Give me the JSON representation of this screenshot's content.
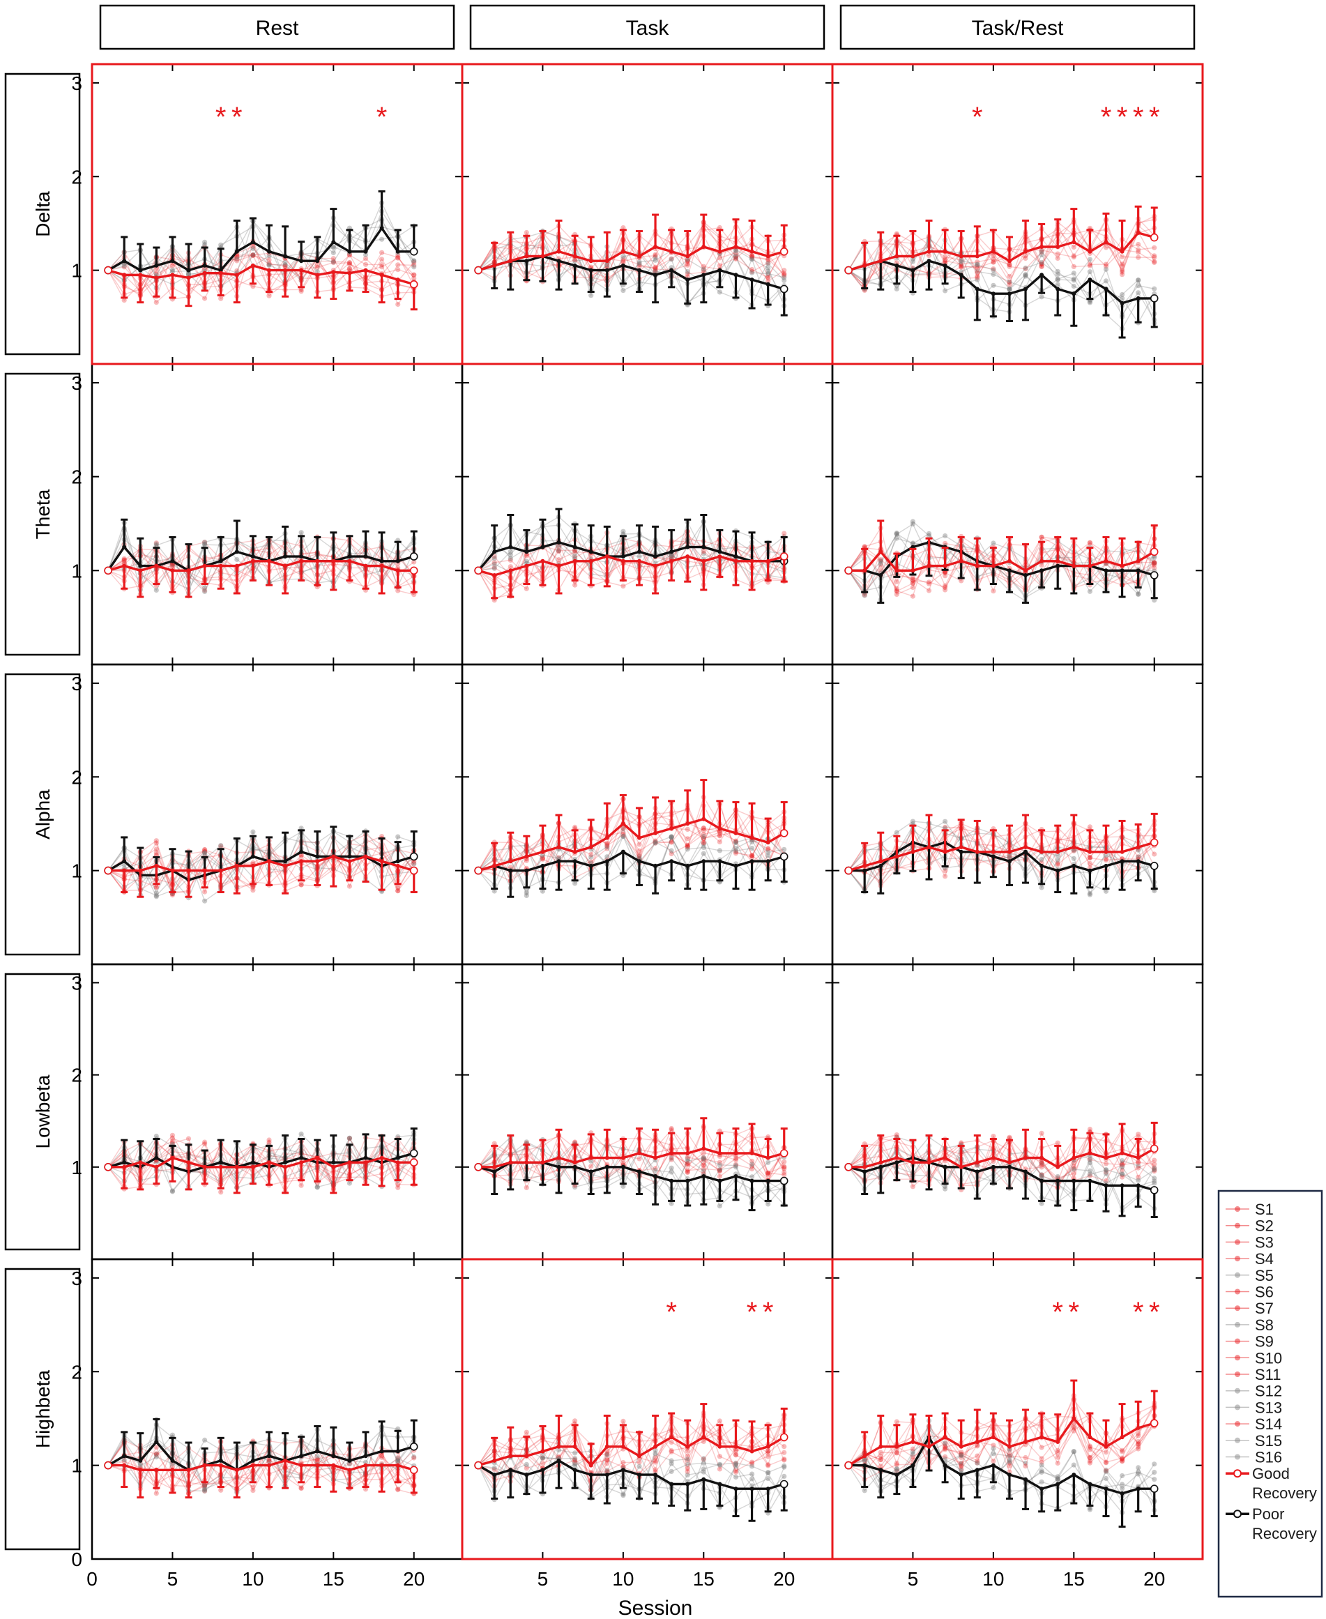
{
  "chart_data": {
    "type": "line",
    "columns": [
      "Rest",
      "Task",
      "Task/Rest"
    ],
    "rows": [
      "Delta",
      "Theta",
      "Alpha",
      "Lowbeta",
      "Highbeta"
    ],
    "xlabel": "Session",
    "xlim": [
      0,
      23
    ],
    "ylim": [
      0,
      3.2
    ],
    "xticks": [
      0,
      5,
      10,
      15,
      20
    ],
    "yticks": [
      0,
      1,
      2,
      3
    ],
    "x": [
      1,
      2,
      3,
      4,
      5,
      6,
      7,
      8,
      9,
      10,
      11,
      12,
      13,
      14,
      15,
      16,
      17,
      18,
      19,
      20
    ],
    "grid": false,
    "legend_position": "right-bottom",
    "colors": {
      "good": "#e8191d",
      "poor": "#111111",
      "highlight_border": "#e8191d"
    },
    "legend": [
      {
        "label": "S1",
        "group": "good",
        "marker": "circle"
      },
      {
        "label": "S2",
        "group": "good",
        "marker": "square"
      },
      {
        "label": "S3",
        "group": "good",
        "marker": "triangle-up"
      },
      {
        "label": "S4",
        "group": "good",
        "marker": "triangle-down"
      },
      {
        "label": "S5",
        "group": "poor",
        "marker": "diamond"
      },
      {
        "label": "S6",
        "group": "good",
        "marker": "triangle-left"
      },
      {
        "label": "S7",
        "group": "good",
        "marker": "triangle-right"
      },
      {
        "label": "S8",
        "group": "poor",
        "marker": "hexagon"
      },
      {
        "label": "S9",
        "group": "good",
        "marker": "circle"
      },
      {
        "label": "S10",
        "group": "good",
        "marker": "circle"
      },
      {
        "label": "S11",
        "group": "good",
        "marker": "circle"
      },
      {
        "label": "S12",
        "group": "poor",
        "marker": "plus"
      },
      {
        "label": "S13",
        "group": "poor",
        "marker": "cross"
      },
      {
        "label": "S14",
        "group": "good",
        "marker": "star"
      },
      {
        "label": "S15",
        "group": "poor",
        "marker": "dot"
      },
      {
        "label": "S16",
        "group": "poor",
        "marker": "dash"
      },
      {
        "label": "Good Recovery",
        "group": "good-mean",
        "marker": "open-circle"
      },
      {
        "label": "Poor Recovery",
        "group": "poor-mean",
        "marker": "open-circle"
      }
    ],
    "panels": [
      {
        "row": "Delta",
        "column": "Rest",
        "highlight": true,
        "stars": [
          {
            "x": 8,
            "label": "*"
          },
          {
            "x": 9,
            "label": "*"
          },
          {
            "x": 18,
            "label": "*"
          }
        ],
        "good": [
          1.0,
          0.95,
          0.95,
          0.92,
          0.95,
          0.92,
          0.97,
          0.97,
          0.95,
          1.05,
          1.0,
          1.0,
          1.0,
          0.95,
          0.98,
          0.97,
          1.0,
          0.95,
          0.9,
          0.85
        ],
        "poor": [
          1.0,
          1.1,
          1.0,
          1.05,
          1.1,
          1.0,
          1.05,
          1.0,
          1.2,
          1.3,
          1.2,
          1.15,
          1.1,
          1.1,
          1.3,
          1.2,
          1.2,
          1.45,
          1.2,
          1.2
        ]
      },
      {
        "row": "Delta",
        "column": "Task",
        "highlight": true,
        "stars": [],
        "good": [
          1.0,
          1.05,
          1.1,
          1.15,
          1.15,
          1.2,
          1.15,
          1.1,
          1.1,
          1.2,
          1.15,
          1.25,
          1.2,
          1.15,
          1.25,
          1.2,
          1.25,
          1.2,
          1.15,
          1.2
        ],
        "poor": [
          1.0,
          1.05,
          1.1,
          1.1,
          1.15,
          1.1,
          1.05,
          1.0,
          1.0,
          1.05,
          1.0,
          0.95,
          1.0,
          0.9,
          0.95,
          1.0,
          0.95,
          0.9,
          0.85,
          0.8
        ]
      },
      {
        "row": "Delta",
        "column": "Task/Rest",
        "highlight": true,
        "stars": [
          {
            "x": 9,
            "label": "*"
          },
          {
            "x": 17,
            "label": "*"
          },
          {
            "x": 18,
            "label": "*"
          },
          {
            "x": 19,
            "label": "*"
          },
          {
            "x": 20,
            "label": "*"
          }
        ],
        "good": [
          1.0,
          1.05,
          1.1,
          1.15,
          1.15,
          1.2,
          1.2,
          1.15,
          1.15,
          1.2,
          1.1,
          1.2,
          1.25,
          1.25,
          1.3,
          1.2,
          1.3,
          1.2,
          1.4,
          1.35
        ],
        "poor": [
          1.0,
          1.05,
          1.1,
          1.05,
          1.0,
          1.1,
          1.05,
          0.95,
          0.8,
          0.75,
          0.75,
          0.8,
          0.95,
          0.8,
          0.75,
          0.9,
          0.8,
          0.65,
          0.7,
          0.7
        ]
      },
      {
        "row": "Theta",
        "column": "Rest",
        "highlight": false,
        "stars": [],
        "good": [
          1.0,
          1.05,
          1.0,
          1.05,
          1.0,
          1.0,
          1.05,
          1.05,
          1.05,
          1.1,
          1.1,
          1.05,
          1.1,
          1.1,
          1.1,
          1.1,
          1.05,
          1.05,
          1.0,
          1.0
        ],
        "poor": [
          1.0,
          1.25,
          1.05,
          1.05,
          1.1,
          1.0,
          1.05,
          1.1,
          1.2,
          1.15,
          1.1,
          1.15,
          1.15,
          1.1,
          1.1,
          1.15,
          1.15,
          1.1,
          1.1,
          1.15
        ]
      },
      {
        "row": "Theta",
        "column": "Task",
        "highlight": false,
        "stars": [],
        "good": [
          1.0,
          0.95,
          1.0,
          1.05,
          1.1,
          1.05,
          1.1,
          1.1,
          1.15,
          1.1,
          1.1,
          1.05,
          1.1,
          1.15,
          1.1,
          1.15,
          1.1,
          1.1,
          1.1,
          1.15
        ],
        "poor": [
          1.0,
          1.2,
          1.25,
          1.2,
          1.25,
          1.3,
          1.25,
          1.2,
          1.15,
          1.15,
          1.2,
          1.15,
          1.2,
          1.25,
          1.25,
          1.2,
          1.15,
          1.1,
          1.1,
          1.1
        ]
      },
      {
        "row": "Theta",
        "column": "Task/Rest",
        "highlight": false,
        "stars": [],
        "good": [
          1.0,
          1.0,
          1.2,
          1.0,
          1.0,
          1.05,
          1.05,
          1.1,
          1.05,
          1.05,
          1.1,
          1.0,
          1.1,
          1.1,
          1.05,
          1.05,
          1.1,
          1.05,
          1.1,
          1.2
        ],
        "poor": [
          1.0,
          1.0,
          0.95,
          1.15,
          1.25,
          1.3,
          1.25,
          1.2,
          1.1,
          1.05,
          1.0,
          0.95,
          1.0,
          1.05,
          1.05,
          1.05,
          1.0,
          1.0,
          1.0,
          0.95
        ]
      },
      {
        "row": "Alpha",
        "column": "Rest",
        "highlight": false,
        "stars": [],
        "good": [
          1.0,
          1.0,
          1.0,
          1.05,
          1.0,
          1.0,
          1.0,
          1.0,
          1.05,
          1.05,
          1.1,
          1.05,
          1.1,
          1.1,
          1.15,
          1.1,
          1.15,
          1.1,
          1.05,
          1.0
        ],
        "poor": [
          1.0,
          1.1,
          0.95,
          0.95,
          1.0,
          0.9,
          0.95,
          1.0,
          1.05,
          1.15,
          1.1,
          1.1,
          1.2,
          1.15,
          1.15,
          1.15,
          1.15,
          1.05,
          1.1,
          1.15
        ]
      },
      {
        "row": "Alpha",
        "column": "Task",
        "highlight": false,
        "stars": [],
        "good": [
          1.0,
          1.05,
          1.1,
          1.15,
          1.2,
          1.25,
          1.2,
          1.25,
          1.35,
          1.5,
          1.35,
          1.4,
          1.45,
          1.5,
          1.55,
          1.45,
          1.4,
          1.35,
          1.3,
          1.4
        ],
        "poor": [
          1.0,
          1.05,
          1.0,
          1.0,
          1.05,
          1.1,
          1.1,
          1.05,
          1.1,
          1.2,
          1.1,
          1.05,
          1.1,
          1.05,
          1.1,
          1.1,
          1.05,
          1.1,
          1.1,
          1.15
        ]
      },
      {
        "row": "Alpha",
        "column": "Task/Rest",
        "highlight": false,
        "stars": [],
        "good": [
          1.0,
          1.05,
          1.1,
          1.15,
          1.2,
          1.25,
          1.2,
          1.25,
          1.2,
          1.2,
          1.2,
          1.25,
          1.2,
          1.2,
          1.25,
          1.2,
          1.2,
          1.2,
          1.25,
          1.3
        ],
        "poor": [
          1.0,
          1.0,
          1.05,
          1.2,
          1.3,
          1.25,
          1.3,
          1.2,
          1.2,
          1.15,
          1.1,
          1.2,
          1.05,
          1.0,
          1.05,
          1.0,
          1.05,
          1.1,
          1.1,
          1.05
        ]
      },
      {
        "row": "Lowbeta",
        "column": "Rest",
        "highlight": false,
        "stars": [],
        "good": [
          1.0,
          1.0,
          1.05,
          1.0,
          1.1,
          1.05,
          1.0,
          1.0,
          1.0,
          1.0,
          1.05,
          1.0,
          1.05,
          1.1,
          1.0,
          1.05,
          1.05,
          1.1,
          1.05,
          1.05
        ],
        "poor": [
          1.0,
          1.05,
          1.0,
          1.1,
          1.0,
          0.95,
          1.0,
          1.05,
          1.0,
          1.05,
          1.0,
          1.05,
          1.1,
          1.05,
          1.05,
          1.05,
          1.1,
          1.05,
          1.1,
          1.15
        ]
      },
      {
        "row": "Lowbeta",
        "column": "Task",
        "highlight": false,
        "stars": [],
        "good": [
          1.0,
          1.0,
          1.05,
          1.05,
          1.05,
          1.1,
          1.05,
          1.1,
          1.1,
          1.1,
          1.15,
          1.1,
          1.15,
          1.15,
          1.2,
          1.15,
          1.15,
          1.15,
          1.1,
          1.15
        ],
        "poor": [
          1.0,
          0.95,
          1.05,
          1.05,
          1.05,
          1.0,
          1.0,
          0.95,
          1.0,
          1.0,
          0.95,
          0.9,
          0.85,
          0.85,
          0.9,
          0.85,
          0.9,
          0.85,
          0.85,
          0.85
        ]
      },
      {
        "row": "Lowbeta",
        "column": "Task/Rest",
        "highlight": false,
        "stars": [],
        "good": [
          1.0,
          1.0,
          1.05,
          1.1,
          1.05,
          1.05,
          1.1,
          1.0,
          1.05,
          1.1,
          1.05,
          1.1,
          1.1,
          1.0,
          1.1,
          1.15,
          1.1,
          1.15,
          1.1,
          1.2
        ],
        "poor": [
          1.0,
          0.95,
          1.0,
          1.05,
          1.1,
          1.05,
          1.0,
          1.0,
          0.95,
          1.0,
          1.0,
          0.95,
          0.85,
          0.85,
          0.85,
          0.85,
          0.8,
          0.8,
          0.8,
          0.75
        ]
      },
      {
        "row": "Highbeta",
        "column": "Rest",
        "highlight": false,
        "stars": [],
        "good": [
          1.0,
          1.0,
          0.95,
          0.95,
          0.95,
          0.95,
          1.0,
          1.0,
          0.95,
          1.0,
          1.0,
          1.05,
          1.0,
          1.0,
          1.0,
          0.95,
          1.0,
          1.0,
          1.0,
          0.95
        ],
        "poor": [
          1.0,
          1.1,
          1.05,
          1.25,
          1.05,
          0.95,
          1.0,
          1.05,
          0.95,
          1.05,
          1.1,
          1.05,
          1.1,
          1.15,
          1.1,
          1.05,
          1.1,
          1.15,
          1.15,
          1.2
        ]
      },
      {
        "row": "Highbeta",
        "column": "Task",
        "highlight": true,
        "stars": [
          {
            "x": 13,
            "label": "*"
          },
          {
            "x": 18,
            "label": "*"
          },
          {
            "x": 19,
            "label": "*"
          }
        ],
        "good": [
          1.0,
          1.05,
          1.1,
          1.1,
          1.15,
          1.2,
          1.2,
          1.0,
          1.2,
          1.2,
          1.1,
          1.2,
          1.3,
          1.2,
          1.3,
          1.2,
          1.2,
          1.15,
          1.2,
          1.3
        ],
        "poor": [
          1.0,
          0.9,
          0.95,
          0.9,
          0.95,
          1.05,
          0.95,
          0.9,
          0.9,
          0.95,
          0.9,
          0.9,
          0.8,
          0.8,
          0.85,
          0.8,
          0.75,
          0.75,
          0.75,
          0.8
        ]
      },
      {
        "row": "Highbeta",
        "column": "Task/Rest",
        "highlight": true,
        "stars": [
          {
            "x": 14,
            "label": "*"
          },
          {
            "x": 15,
            "label": "*"
          },
          {
            "x": 19,
            "label": "*"
          },
          {
            "x": 20,
            "label": "*"
          }
        ],
        "good": [
          1.0,
          1.1,
          1.2,
          1.2,
          1.25,
          1.2,
          1.3,
          1.2,
          1.25,
          1.3,
          1.2,
          1.25,
          1.3,
          1.25,
          1.5,
          1.3,
          1.2,
          1.3,
          1.4,
          1.45
        ],
        "poor": [
          1.0,
          1.0,
          0.95,
          0.9,
          1.0,
          1.3,
          1.0,
          0.9,
          0.95,
          1.0,
          0.9,
          0.85,
          0.75,
          0.8,
          0.9,
          0.8,
          0.75,
          0.7,
          0.75,
          0.75
        ]
      }
    ]
  }
}
